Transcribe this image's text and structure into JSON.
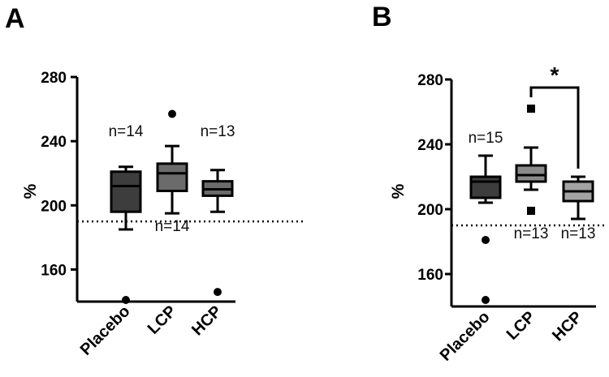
{
  "chart_data": [
    {
      "panel_label": "A",
      "type": "box",
      "ylabel": "%",
      "ylim": [
        140,
        280
      ],
      "yticks": [
        160,
        200,
        240,
        280
      ],
      "ytick_labels": [
        "160",
        "200",
        "240",
        "280"
      ],
      "reference_line": 190,
      "categories": [
        "Placebo",
        "LCP",
        "HCP"
      ],
      "boxes": [
        {
          "name": "Placebo",
          "whisker_low": 185,
          "q1": 196,
          "median": 212,
          "q3": 221,
          "whisker_high": 224,
          "outliers": [
            141
          ],
          "color": "#3d3d3d",
          "outlier_marker": "circle"
        },
        {
          "name": "LCP",
          "whisker_low": 195,
          "q1": 209,
          "median": 220,
          "q3": 226,
          "whisker_high": 237,
          "outliers": [
            257
          ],
          "color": "#6b6b6b",
          "outlier_marker": "circle"
        },
        {
          "name": "HCP",
          "whisker_low": 196,
          "q1": 206,
          "median": 210,
          "q3": 215,
          "whisker_high": 222,
          "outliers": [
            146
          ],
          "color": "#6b6b6b",
          "outlier_marker": "circle"
        }
      ],
      "annotations": [
        {
          "text": "n=14",
          "category": "Placebo",
          "y": 243
        },
        {
          "text": "n=13",
          "category": "HCP",
          "y": 243
        },
        {
          "text": "n=14",
          "category": "LCP",
          "y": 184
        }
      ]
    },
    {
      "panel_label": "B",
      "type": "box",
      "ylabel": "%",
      "ylim": [
        140,
        280
      ],
      "yticks": [
        160,
        200,
        240,
        280
      ],
      "ytick_labels": [
        "160",
        "200",
        "240",
        "280"
      ],
      "reference_line": 190,
      "categories": [
        "Placebo",
        "LCP",
        "HCP"
      ],
      "boxes": [
        {
          "name": "Placebo",
          "whisker_low": 204,
          "q1": 207,
          "median": 217,
          "q3": 220,
          "whisker_high": 233,
          "outliers": [
            181,
            144
          ],
          "color": "#3d3d3d",
          "outlier_marker": "circle"
        },
        {
          "name": "LCP",
          "whisker_low": 212,
          "q1": 217,
          "median": 221,
          "q3": 227,
          "whisker_high": 238,
          "outliers": [
            262,
            199
          ],
          "color": "#8a8a8a",
          "outlier_marker": "square"
        },
        {
          "name": "HCP",
          "whisker_low": 194,
          "q1": 205,
          "median": 211,
          "q3": 217,
          "whisker_high": 220,
          "outliers": [],
          "color": "#a3a3a3",
          "outlier_marker": "circle"
        }
      ],
      "annotations": [
        {
          "text": "n=15",
          "category": "Placebo",
          "y": 241
        },
        {
          "text": "n=13",
          "category": "LCP",
          "y": 182
        },
        {
          "text": "n=13",
          "category": "HCP",
          "y": 182
        }
      ],
      "significance": {
        "from": "LCP",
        "to": "HCP",
        "label": "*",
        "y": 277
      }
    }
  ]
}
